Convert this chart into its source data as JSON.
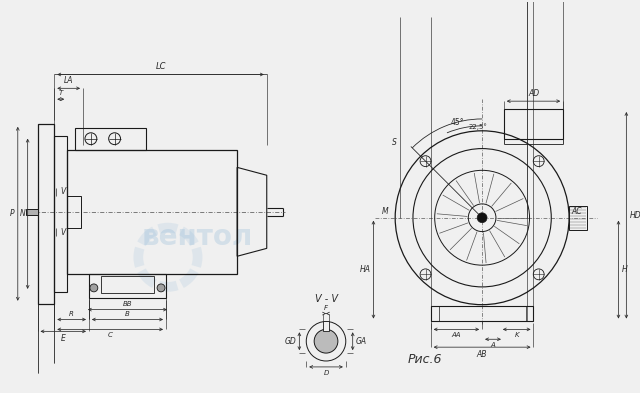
{
  "bg_color": "#f0f0f0",
  "line_color": "#1a1a1a",
  "dim_color": "#2a2a2a",
  "watermark_text": "вентол",
  "watermark_color": "#90b8d8",
  "ris_label": "Рис.6",
  "vv_label": "V - V",
  "labels_left": {
    "LC": "LC",
    "LA": "LA",
    "T": "T",
    "P": "P",
    "N": "N",
    "V": "V",
    "BB": "BB",
    "B": "B",
    "R": "R",
    "C": "C",
    "E": "E"
  },
  "labels_right": {
    "AD": "AD",
    "AC": "AC",
    "HD": "HD",
    "H": "H",
    "HA": "HA",
    "AA": "AA",
    "A": "A",
    "AB": "AB",
    "K": "K",
    "S": "S",
    "M": "M",
    "ang45": "45°",
    "ang225": "22,5°"
  },
  "labels_vv": {
    "F": "F",
    "GD": "GD",
    "GA": "GA",
    "D": "D"
  }
}
